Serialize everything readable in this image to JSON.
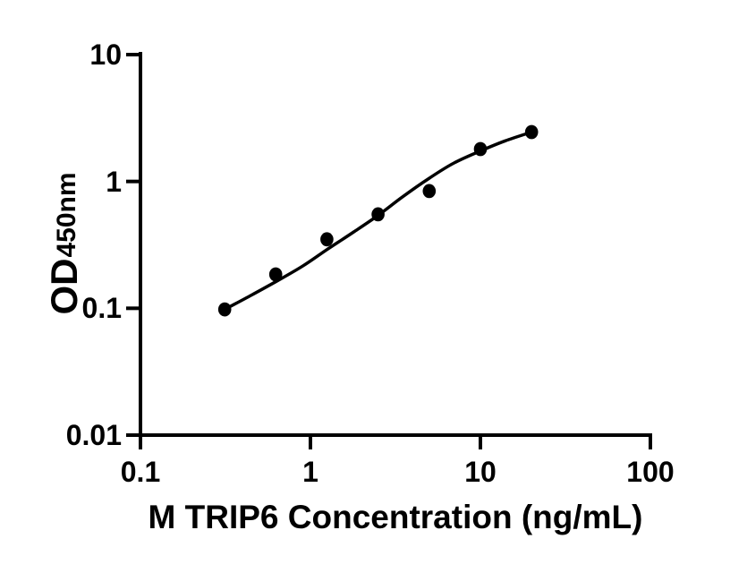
{
  "figure": {
    "background": "#ffffff",
    "ink_color": "#000000"
  },
  "chart_data": {
    "type": "scatter",
    "xlabel": "M TRIP6 Concentration (ng/mL)",
    "ylabel_main": "OD",
    "ylabel_subscript": "450nm",
    "xscale": "log",
    "yscale": "log",
    "xlim": [
      0.1,
      100
    ],
    "ylim": [
      0.01,
      10
    ],
    "grid": false,
    "legend": false,
    "x_ticks": [
      {
        "value": 0.1,
        "label": "0.1"
      },
      {
        "value": 1,
        "label": "1"
      },
      {
        "value": 10,
        "label": "10"
      },
      {
        "value": 100,
        "label": "100"
      }
    ],
    "y_ticks": [
      {
        "value": 10,
        "label": "10"
      },
      {
        "value": 1,
        "label": "1"
      },
      {
        "value": 0.1,
        "label": "0.1"
      },
      {
        "value": 0.01,
        "label": "0.01"
      }
    ],
    "series": [
      {
        "name": "standard-points",
        "type": "scatter",
        "marker": "filled-circle",
        "color": "#000000",
        "points": [
          [
            0.313,
            0.098
          ],
          [
            0.625,
            0.185
          ],
          [
            1.25,
            0.35
          ],
          [
            2.5,
            0.55
          ],
          [
            5,
            0.84
          ],
          [
            10,
            1.8
          ],
          [
            20,
            2.45
          ]
        ]
      },
      {
        "name": "fit-curve",
        "type": "line",
        "color": "#000000",
        "points": [
          [
            0.313,
            0.098
          ],
          [
            0.45,
            0.127
          ],
          [
            0.625,
            0.162
          ],
          [
            0.9,
            0.215
          ],
          [
            1.25,
            0.29
          ],
          [
            1.8,
            0.4
          ],
          [
            2.5,
            0.54
          ],
          [
            3.5,
            0.76
          ],
          [
            5,
            1.06
          ],
          [
            7,
            1.4
          ],
          [
            10,
            1.74
          ],
          [
            14,
            2.09
          ],
          [
            20,
            2.45
          ]
        ]
      }
    ]
  }
}
